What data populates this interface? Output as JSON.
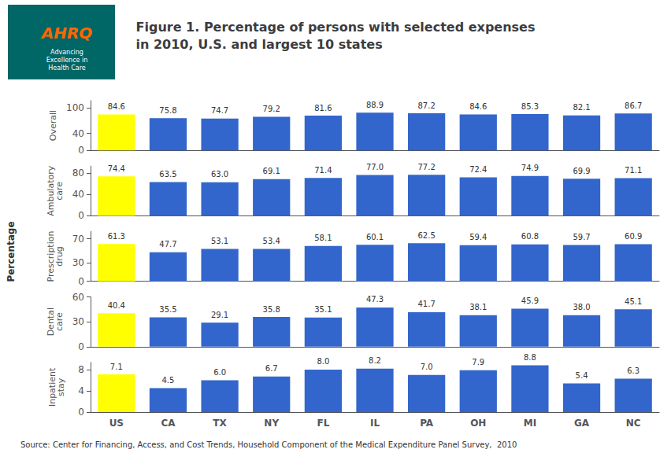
{
  "title": "Figure 1. Percentage of persons with selected expenses\nin 2010, U.S. and largest 10 states",
  "ylabel": "Percentage",
  "source": "Source: Center for Financing, Access, and Cost Trends, Household Component of the Medical Expenditure Panel Survey,  2010",
  "annotations": [
    "AHRQ",
    "Advancing\nExcellence in\nHealth Care"
  ],
  "chart_data": [
    {
      "type": "bar",
      "ylabel": "Overall",
      "categories": [
        "US",
        "CA",
        "TX",
        "NY",
        "FL",
        "IL",
        "PA",
        "OH",
        "MI",
        "GA",
        "NC"
      ],
      "values": [
        84.6,
        75.8,
        74.7,
        79.2,
        81.6,
        88.9,
        87.2,
        84.6,
        85.3,
        82.1,
        86.7
      ],
      "colors": [
        "#FFFF00",
        "#3366CC",
        "#3366CC",
        "#3366CC",
        "#3366CC",
        "#3366CC",
        "#3366CC",
        "#3366CC",
        "#3366CC",
        "#3366CC",
        "#3366CC"
      ],
      "ylim": [
        0,
        117
      ],
      "yticks": [
        0,
        40,
        100
      ],
      "grid": false,
      "data_labels": true,
      "tick_labels": "y"
    },
    {
      "type": "bar",
      "ylabel": "Ambulatory\ncare",
      "categories": [
        "US",
        "CA",
        "TX",
        "NY",
        "FL",
        "IL",
        "PA",
        "OH",
        "MI",
        "GA",
        "NC"
      ],
      "values": [
        74.4,
        63.5,
        63.0,
        69.1,
        71.4,
        77.0,
        77.2,
        72.4,
        74.9,
        69.9,
        71.1
      ],
      "value_labels": [
        "74.4",
        "63.5",
        "63.0",
        "69.1",
        "71.4",
        "77.0",
        "77.2",
        "72.4",
        "74.9",
        "69.9",
        "71.1"
      ],
      "colors": [
        "#FFFF00",
        "#3366CC",
        "#3366CC",
        "#3366CC",
        "#3366CC",
        "#3366CC",
        "#3366CC",
        "#3366CC",
        "#3366CC",
        "#3366CC",
        "#3366CC"
      ],
      "ylim": [
        0,
        93.6
      ],
      "yticks": [
        0,
        40,
        80
      ],
      "grid": false,
      "data_labels": true,
      "tick_labels": "y"
    },
    {
      "type": "bar",
      "ylabel": "Prescription\ndrug",
      "categories": [
        "US",
        "CA",
        "TX",
        "NY",
        "FL",
        "IL",
        "PA",
        "OH",
        "MI",
        "GA",
        "NC"
      ],
      "values": [
        61.3,
        47.7,
        53.1,
        53.4,
        58.1,
        60.1,
        62.5,
        59.4,
        60.8,
        59.7,
        60.9
      ],
      "colors": [
        "#FFFF00",
        "#3366CC",
        "#3366CC",
        "#3366CC",
        "#3366CC",
        "#3366CC",
        "#3366CC",
        "#3366CC",
        "#3366CC",
        "#3366CC",
        "#3366CC"
      ],
      "ylim": [
        0,
        81.9
      ],
      "yticks": [
        0,
        30,
        70
      ],
      "grid": false,
      "data_labels": true,
      "tick_labels": "y"
    },
    {
      "type": "bar",
      "ylabel": "Dental\ncare",
      "categories": [
        "US",
        "CA",
        "TX",
        "NY",
        "FL",
        "IL",
        "PA",
        "OH",
        "MI",
        "GA",
        "NC"
      ],
      "values": [
        40.4,
        35.5,
        29.1,
        35.8,
        35.1,
        47.3,
        41.7,
        38.1,
        45.9,
        38.0,
        45.1
      ],
      "value_labels": [
        "40.4",
        "35.5",
        "29.1",
        "35.8",
        "35.1",
        "47.3",
        "41.7",
        "38.1",
        "45.9",
        "38.0",
        "45.1"
      ],
      "colors": [
        "#FFFF00",
        "#3366CC",
        "#3366CC",
        "#3366CC",
        "#3366CC",
        "#3366CC",
        "#3366CC",
        "#3366CC",
        "#3366CC",
        "#3366CC",
        "#3366CC"
      ],
      "ylim": [
        0,
        60
      ],
      "yticks": [
        0,
        30,
        60
      ],
      "grid": false,
      "data_labels": true,
      "tick_labels": "y"
    },
    {
      "type": "bar",
      "ylabel": "Inpatient\nstay",
      "categories": [
        "US",
        "CA",
        "TX",
        "NY",
        "FL",
        "IL",
        "PA",
        "OH",
        "MI",
        "GA",
        "NC"
      ],
      "values": [
        7.1,
        4.5,
        6.0,
        6.7,
        8.0,
        8.2,
        7.0,
        7.9,
        8.8,
        5.4,
        6.3
      ],
      "value_labels": [
        "7.1",
        "4.5",
        "6.0",
        "6.7",
        "8.0",
        "8.2",
        "7.0",
        "7.9",
        "8.8",
        "5.4",
        "6.3"
      ],
      "colors": [
        "#FFFF00",
        "#3366CC",
        "#3366CC",
        "#3366CC",
        "#3366CC",
        "#3366CC",
        "#3366CC",
        "#3366CC",
        "#3366CC",
        "#3366CC",
        "#3366CC"
      ],
      "ylim": [
        0,
        9.36
      ],
      "yticks": [
        0,
        4,
        8
      ],
      "grid": false,
      "data_labels": true
    }
  ]
}
